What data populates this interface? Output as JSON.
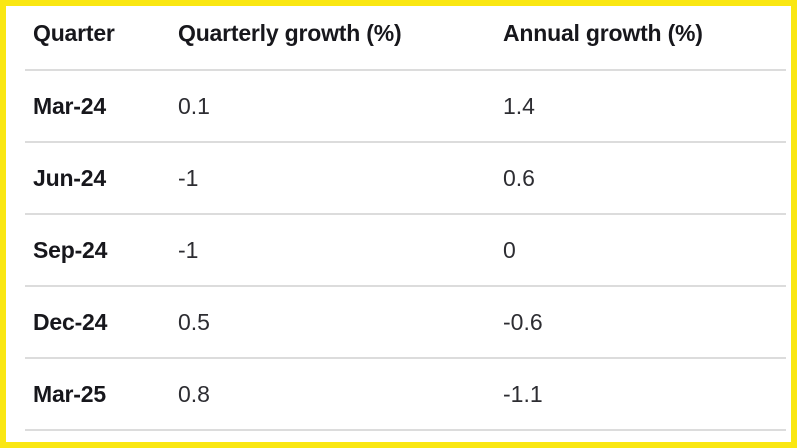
{
  "theme": {
    "frame_border_color": "#FAE712",
    "divider_color": "#dcdcdc",
    "header_text_color": "#17171c",
    "cell_text_color": "#2d2d32",
    "background": "#ffffff"
  },
  "table": {
    "columns": [
      "Quarter",
      "Quarterly growth (%)",
      "Annual growth (%)"
    ],
    "rows": [
      [
        "Mar-24",
        "0.1",
        "1.4"
      ],
      [
        "Jun-24",
        "-1",
        "0.6"
      ],
      [
        "Sep-24",
        "-1",
        "0"
      ],
      [
        "Dec-24",
        "0.5",
        "-0.6"
      ],
      [
        "Mar-25",
        "0.8",
        "-1.1"
      ]
    ]
  },
  "chart_data": {
    "type": "table",
    "title": "",
    "columns": [
      "Quarter",
      "Quarterly growth (%)",
      "Annual growth (%)"
    ],
    "rows": [
      [
        "Mar-24",
        0.1,
        1.4
      ],
      [
        "Jun-24",
        -1,
        0.6
      ],
      [
        "Sep-24",
        -1,
        0
      ],
      [
        "Dec-24",
        0.5,
        -0.6
      ],
      [
        "Mar-25",
        0.8,
        -1.1
      ]
    ]
  }
}
